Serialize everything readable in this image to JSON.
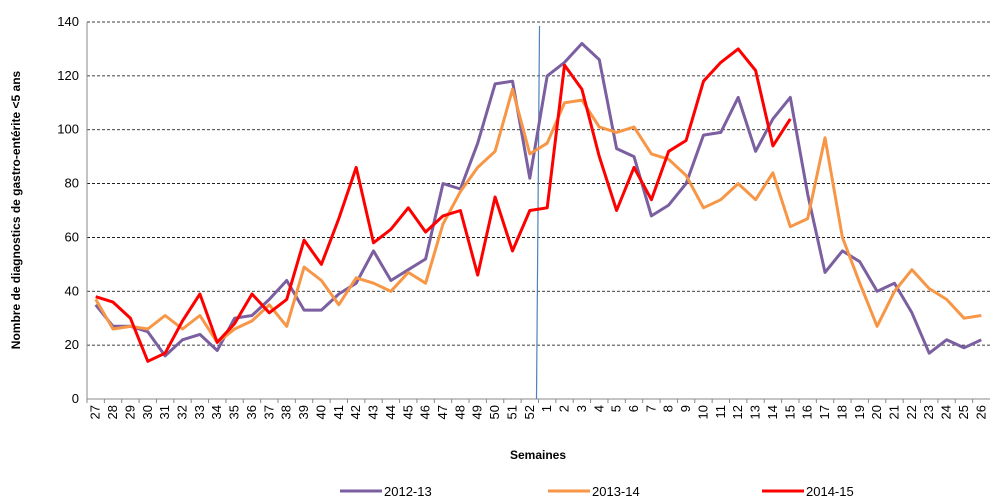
{
  "chart_data": {
    "type": "line",
    "ylabel": "Nombre de diagnostics de gastro-entérite <5 ans",
    "xlabel": "Semaines",
    "categories": [
      "27",
      "28",
      "29",
      "30",
      "31",
      "32",
      "33",
      "34",
      "35",
      "36",
      "37",
      "38",
      "39",
      "40",
      "41",
      "42",
      "43",
      "44",
      "45",
      "46",
      "47",
      "48",
      "49",
      "50",
      "51",
      "52",
      "1",
      "2",
      "3",
      "4",
      "5",
      "6",
      "7",
      "8",
      "9",
      "10",
      "11",
      "12",
      "13",
      "14",
      "15",
      "16",
      "17",
      "18",
      "19",
      "20",
      "21",
      "22",
      "23",
      "24",
      "25",
      "26"
    ],
    "series": [
      {
        "name": "2012-13",
        "color": "#7b5fa0",
        "values": [
          35,
          27,
          27,
          25,
          16,
          22,
          24,
          18,
          30,
          31,
          37,
          44,
          33,
          33,
          39,
          43,
          55,
          44,
          48,
          52,
          80,
          78,
          95,
          117,
          118,
          82,
          120,
          125,
          132,
          126,
          93,
          90,
          68,
          72,
          80,
          98,
          99,
          112,
          92,
          104,
          112,
          76,
          47,
          55,
          51,
          40,
          43,
          32,
          17,
          22,
          19,
          22
        ]
      },
      {
        "name": "2013-14",
        "color": "#f79646",
        "values": [
          37,
          26,
          27,
          26,
          31,
          26,
          31,
          21,
          26,
          29,
          35,
          27,
          49,
          44,
          35,
          45,
          43,
          40,
          47,
          43,
          65,
          77,
          86,
          92,
          115,
          91,
          95,
          110,
          111,
          101,
          99,
          101,
          91,
          89,
          83,
          71,
          74,
          80,
          74,
          84,
          64,
          67,
          97,
          60,
          43,
          27,
          40,
          48,
          41,
          37,
          30,
          31
        ]
      },
      {
        "name": "2014-15",
        "color": "#ff0000",
        "values": [
          38,
          36,
          30,
          14,
          17,
          29,
          39,
          21,
          28,
          39,
          32,
          37,
          59,
          50,
          67,
          86,
          58,
          63,
          71,
          62,
          68,
          70,
          46,
          75,
          55,
          70,
          71,
          124,
          115,
          90,
          70,
          86,
          74,
          92,
          96,
          118,
          125,
          130,
          122,
          94,
          104,
          null,
          null,
          null,
          null,
          null,
          null,
          null,
          null,
          null,
          null,
          null
        ]
      }
    ],
    "ylim": [
      0,
      140
    ],
    "yticks": [
      0,
      20,
      40,
      60,
      80,
      100,
      120,
      140
    ],
    "grid": true,
    "legend": "bottom"
  }
}
